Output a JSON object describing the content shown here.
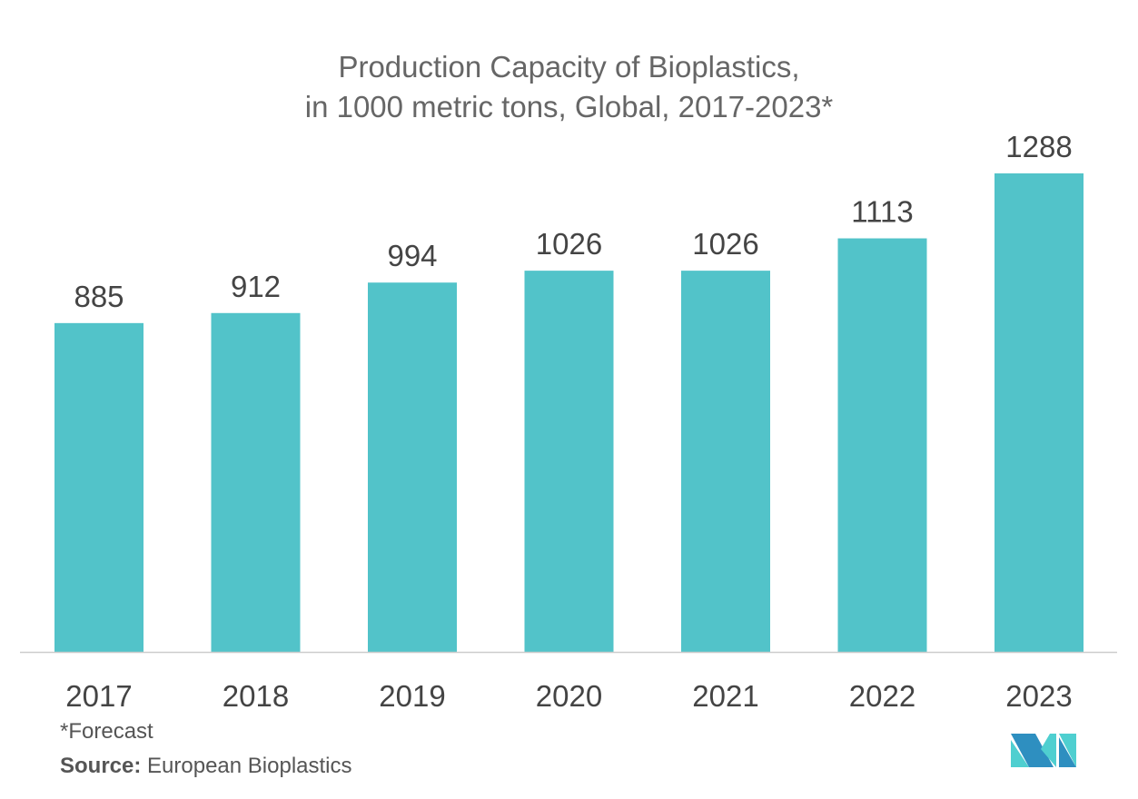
{
  "chart_data": {
    "type": "bar",
    "title_line1": "Production Capacity of Bioplastics,",
    "title_line2": "in 1000 metric tons, Global, 2017-2023*",
    "categories": [
      "2017",
      "2018",
      "2019",
      "2020",
      "2021",
      "2022",
      "2023"
    ],
    "values": [
      885,
      912,
      994,
      1026,
      1026,
      1113,
      1288
    ],
    "xlabel": "",
    "ylabel": "",
    "ylim": [
      0,
      1300
    ],
    "grid": false,
    "bar_color": "#52c3c9"
  },
  "footnote": "*Forecast",
  "source_label": "Source:",
  "source_text": "European Bioplastics",
  "logo": {
    "text": "Mordor Intelligence",
    "colors": [
      "#2e8fc0",
      "#4fcfd0"
    ]
  }
}
